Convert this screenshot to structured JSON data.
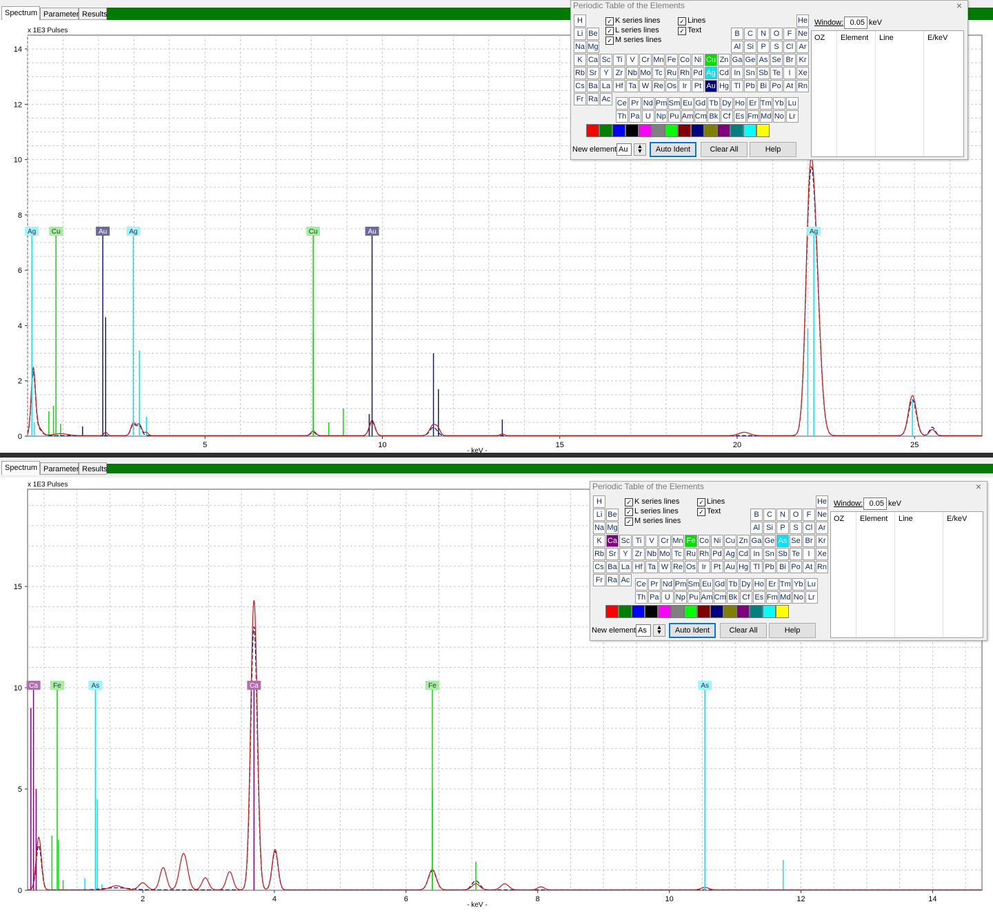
{
  "tabs": [
    {
      "label": "Spectrum"
    },
    {
      "label": "Parameter"
    },
    {
      "label": "Results"
    }
  ],
  "spectra": [
    {
      "y_unit": "x 1E3 Pulses",
      "xlabel": "- keV -",
      "xlim": [
        0,
        26.9
      ],
      "ylim": [
        0,
        14.5
      ],
      "xticks": [
        5,
        10,
        15,
        20,
        25
      ],
      "yticks": [
        0,
        2,
        4,
        6,
        8,
        10,
        12,
        14
      ],
      "markers": [
        {
          "element": "Ag",
          "energy": 0.12,
          "color": "#00e5ff"
        },
        {
          "element": "Cu",
          "energy": 0.8,
          "color": "#00e000"
        },
        {
          "element": "Au",
          "energy": 2.12,
          "color": "#1a1a60"
        },
        {
          "element": "Ag",
          "energy": 2.98,
          "color": "#00e5ff"
        },
        {
          "element": "Cu",
          "energy": 8.05,
          "color": "#00e000"
        },
        {
          "element": "Au",
          "energy": 9.71,
          "color": "#1a1a60"
        },
        {
          "element": "Ag",
          "energy": 22.16,
          "color": "#00e5ff"
        }
      ],
      "minor_lines": [
        {
          "energy": 0.19,
          "height": 0.5,
          "color": "#00e5ff"
        },
        {
          "energy": 0.6,
          "height": 0.9,
          "color": "#00e000"
        },
        {
          "energy": 0.73,
          "height": 1.1,
          "color": "#00e000"
        },
        {
          "energy": 0.93,
          "height": 0.45,
          "color": "#00e000"
        },
        {
          "energy": 2.2,
          "height": 4.3,
          "color": "#1a1a60"
        },
        {
          "energy": 1.55,
          "height": 0.35,
          "color": "#1a1a60"
        },
        {
          "energy": 3.15,
          "height": 3.1,
          "color": "#00e5ff"
        },
        {
          "energy": 3.35,
          "height": 0.7,
          "color": "#00e5ff"
        },
        {
          "energy": 8.9,
          "height": 1.0,
          "color": "#00e000"
        },
        {
          "energy": 8.05,
          "height": 3.7,
          "color": "#00e000"
        },
        {
          "energy": 8.49,
          "height": 0.5,
          "color": "#00e000"
        },
        {
          "energy": 9.63,
          "height": 0.8,
          "color": "#1a1a60"
        },
        {
          "energy": 11.44,
          "height": 3.0,
          "color": "#1a1a60"
        },
        {
          "energy": 11.58,
          "height": 1.7,
          "color": "#1a1a60"
        },
        {
          "energy": 13.38,
          "height": 0.6,
          "color": "#1a1a60"
        },
        {
          "energy": 21.99,
          "height": 3.9,
          "color": "#00e5ff"
        },
        {
          "energy": 24.94,
          "height": 1.3,
          "color": "#00e5ff"
        }
      ],
      "peaks_red": [
        [
          0.16,
          2.35,
          0.06
        ],
        [
          0.3,
          0.3,
          0.1
        ],
        [
          0.93,
          0.07,
          0.2
        ],
        [
          2.2,
          0.12,
          0.05
        ],
        [
          2.98,
          0.45,
          0.07
        ],
        [
          3.15,
          0.4,
          0.07
        ],
        [
          3.35,
          0.12,
          0.05
        ],
        [
          8.05,
          0.17,
          0.07
        ],
        [
          9.71,
          0.55,
          0.08
        ],
        [
          11.44,
          0.4,
          0.1
        ],
        [
          11.58,
          0.15,
          0.06
        ],
        [
          13.38,
          0.06,
          0.06
        ],
        [
          20.2,
          0.12,
          0.15
        ],
        [
          22.16,
          7.4,
          0.15
        ],
        [
          22.02,
          4.2,
          0.11
        ],
        [
          24.94,
          1.45,
          0.11
        ],
        [
          25.5,
          0.22,
          0.08
        ]
      ],
      "peaks_blue": [
        [
          0.16,
          2.2,
          0.06
        ],
        [
          0.3,
          0.25,
          0.1
        ],
        [
          2.98,
          0.4,
          0.07
        ],
        [
          3.15,
          0.35,
          0.07
        ],
        [
          8.05,
          0.12,
          0.07
        ],
        [
          9.71,
          0.5,
          0.08
        ],
        [
          11.44,
          0.3,
          0.1
        ],
        [
          22.16,
          7.2,
          0.15
        ],
        [
          22.02,
          4.0,
          0.11
        ],
        [
          24.94,
          1.3,
          0.11
        ],
        [
          25.5,
          0.3,
          0.08
        ]
      ],
      "ptable": {
        "title": "Periodic Table of the Elements",
        "checkboxes": [
          {
            "label": "K series lines",
            "checked": true
          },
          {
            "label": "L series lines",
            "checked": true
          },
          {
            "label": "M series lines",
            "checked": true
          },
          {
            "label": "Lines",
            "checked": true
          },
          {
            "label": "Text",
            "checked": true
          }
        ],
        "selected": [
          {
            "symbol": "Cu",
            "color": "#00e000"
          },
          {
            "symbol": "Ag",
            "color": "#00e5ff"
          },
          {
            "symbol": "Au",
            "color": "#000080"
          }
        ],
        "window_label": "Window:",
        "window_value": "0.05",
        "window_unit": "keV",
        "new_element_label": "New element:",
        "new_element_value": "Au",
        "buttons": [
          "Auto Ident",
          "Clear All",
          "Help"
        ],
        "results_headers": [
          "OZ",
          "Element",
          "Line",
          "E/keV"
        ]
      }
    },
    {
      "y_unit": "x 1E3 Pulses",
      "xlabel": "- keV -",
      "xlim": [
        0.25,
        14.75
      ],
      "ylim": [
        0,
        19.8
      ],
      "xticks": [
        2,
        4,
        6,
        8,
        10,
        12,
        14
      ],
      "yticks": [
        0,
        5,
        10,
        15
      ],
      "markers": [
        {
          "element": "Ca",
          "energy": 0.34,
          "color": "#800080"
        },
        {
          "element": "Fe",
          "energy": 0.7,
          "color": "#00e000"
        },
        {
          "element": "As",
          "energy": 1.28,
          "color": "#00e5ff"
        },
        {
          "element": "Ca",
          "energy": 3.69,
          "color": "#800080"
        },
        {
          "element": "Fe",
          "energy": 6.4,
          "color": "#00e000"
        },
        {
          "element": "As",
          "energy": 10.54,
          "color": "#00e5ff"
        }
      ],
      "minor_lines": [
        {
          "energy": 0.3,
          "height": 9.0,
          "color": "#800080"
        },
        {
          "energy": 0.38,
          "height": 5.0,
          "color": "#800080"
        },
        {
          "energy": 0.62,
          "height": 2.7,
          "color": "#00e000"
        },
        {
          "energy": 0.72,
          "height": 2.5,
          "color": "#00e000"
        },
        {
          "energy": 0.79,
          "height": 0.5,
          "color": "#00e000"
        },
        {
          "energy": 1.12,
          "height": 0.6,
          "color": "#00e5ff"
        },
        {
          "energy": 1.31,
          "height": 4.5,
          "color": "#00e5ff"
        },
        {
          "energy": 1.38,
          "height": 0.3,
          "color": "#00e5ff"
        },
        {
          "energy": 6.4,
          "height": 5.0,
          "color": "#00e000"
        },
        {
          "energy": 7.06,
          "height": 1.4,
          "color": "#00e000"
        },
        {
          "energy": 11.73,
          "height": 1.5,
          "color": "#00e5ff"
        }
      ],
      "peaks_red": [
        [
          0.42,
          2.6,
          0.04
        ],
        [
          1.6,
          0.2,
          0.1
        ],
        [
          2.0,
          0.35,
          0.06
        ],
        [
          2.31,
          1.1,
          0.05
        ],
        [
          2.62,
          1.8,
          0.06
        ],
        [
          2.95,
          0.6,
          0.05
        ],
        [
          3.32,
          0.9,
          0.05
        ],
        [
          3.69,
          14.3,
          0.05
        ],
        [
          4.01,
          2.0,
          0.045
        ],
        [
          6.4,
          1.0,
          0.06
        ],
        [
          7.06,
          0.3,
          0.06
        ],
        [
          7.5,
          0.3,
          0.06
        ],
        [
          8.05,
          0.15,
          0.05
        ],
        [
          10.54,
          0.12,
          0.06
        ]
      ],
      "peaks_blue": [
        [
          0.42,
          2.2,
          0.04
        ],
        [
          1.6,
          0.1,
          0.2
        ],
        [
          3.69,
          13.0,
          0.05
        ],
        [
          4.01,
          1.9,
          0.045
        ],
        [
          6.4,
          0.95,
          0.06
        ],
        [
          7.06,
          0.45,
          0.06
        ]
      ],
      "ptable": {
        "title": "Periodic Table of the Elements",
        "checkboxes": [
          {
            "label": "K series lines",
            "checked": true
          },
          {
            "label": "L series lines",
            "checked": true
          },
          {
            "label": "M series lines",
            "checked": true
          },
          {
            "label": "Lines",
            "checked": true
          },
          {
            "label": "Text",
            "checked": true
          }
        ],
        "selected": [
          {
            "symbol": "Ca",
            "color": "#800080"
          },
          {
            "symbol": "Fe",
            "color": "#00e000"
          },
          {
            "symbol": "As",
            "color": "#00e5ff"
          }
        ],
        "window_label": "Window:",
        "window_value": "0.05",
        "window_unit": "keV",
        "new_element_label": "New element:",
        "new_element_value": "As",
        "buttons": [
          "Auto Ident",
          "Clear All",
          "Help"
        ],
        "results_headers": [
          "OZ",
          "Element",
          "Line",
          "E/keV"
        ]
      }
    }
  ],
  "periodic_rows": [
    [
      "H",
      "",
      "",
      "",
      "",
      "",
      "",
      "",
      "",
      "",
      "",
      "",
      "",
      "",
      "",
      "",
      "",
      "He"
    ],
    [
      "Li",
      "Be",
      "",
      "",
      "",
      "",
      "",
      "",
      "",
      "",
      "",
      "",
      "B",
      "C",
      "N",
      "O",
      "F",
      "Ne"
    ],
    [
      "Na",
      "Mg",
      "",
      "",
      "",
      "",
      "",
      "",
      "",
      "",
      "",
      "",
      "Al",
      "Si",
      "P",
      "S",
      "Cl",
      "Ar"
    ],
    [
      "K",
      "Ca",
      "Sc",
      "Ti",
      "V",
      "Cr",
      "Mn",
      "Fe",
      "Co",
      "Ni",
      "Cu",
      "Zn",
      "Ga",
      "Ge",
      "As",
      "Se",
      "Br",
      "Kr"
    ],
    [
      "Rb",
      "Sr",
      "Y",
      "Zr",
      "Nb",
      "Mo",
      "Tc",
      "Ru",
      "Rh",
      "Pd",
      "Ag",
      "Cd",
      "In",
      "Sn",
      "Sb",
      "Te",
      "I",
      "Xe"
    ],
    [
      "Cs",
      "Ba",
      "La",
      "Hf",
      "Ta",
      "W",
      "Re",
      "Os",
      "Ir",
      "Pt",
      "Au",
      "Hg",
      "Tl",
      "Pb",
      "Bi",
      "Po",
      "At",
      "Rn"
    ],
    [
      "Fr",
      "Ra",
      "Ac"
    ]
  ],
  "lanthanides": [
    "Ce",
    "Pr",
    "Nd",
    "Pm",
    "Sm",
    "Eu",
    "Gd",
    "Tb",
    "Dy",
    "Ho",
    "Er",
    "Tm",
    "Yb",
    "Lu"
  ],
  "actinides": [
    "Th",
    "Pa",
    "U",
    "Np",
    "Pu",
    "Am",
    "Cm",
    "Bk",
    "Cf",
    "Es",
    "Fm",
    "Md",
    "No",
    "Lr"
  ],
  "palette": [
    "#ff0000",
    "#008000",
    "#0000ff",
    "#000000",
    "#ff00ff",
    "#808080",
    "#00ff00",
    "#800000",
    "#000080",
    "#808000",
    "#800080",
    "#008080",
    "#00ffff",
    "#ffff00"
  ]
}
